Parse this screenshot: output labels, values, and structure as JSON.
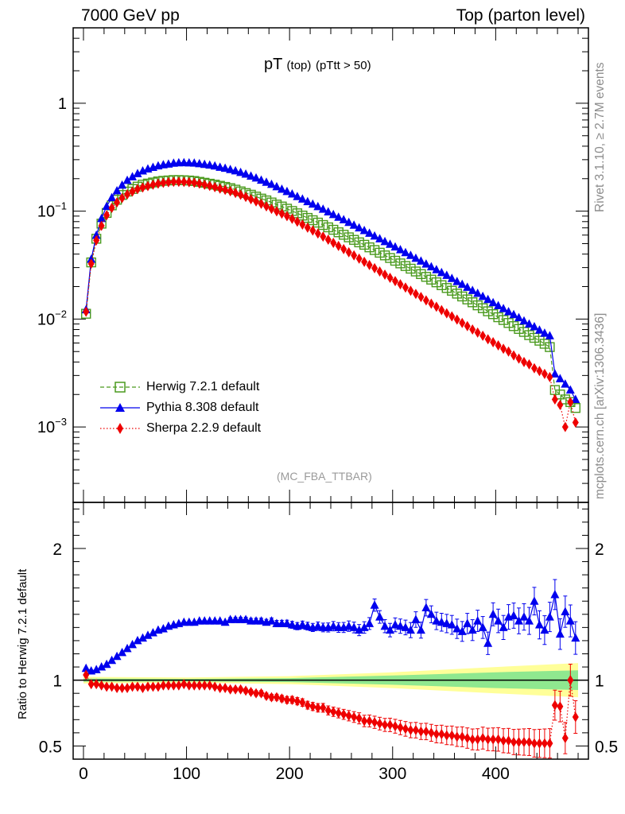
{
  "header": {
    "left": "7000 GeV pp",
    "right": "Top (parton level)"
  },
  "side_labels": {
    "rivet": "Rivet 3.1.10, ≥ 2.7M events",
    "mcplots": "mcplots.cern.ch [arXiv:1306.3436]"
  },
  "colors": {
    "herwig": "#4a9a1e",
    "pythia": "#0000ee",
    "sherpa": "#ee0000",
    "band_yellow": "#ffff99",
    "band_green": "#8fe88f"
  },
  "chart_data": [
    {
      "type": "line",
      "title_main": "pT",
      "title_sub1": "(top)",
      "title_sub2": "(pTtt > 50)",
      "annotation": "(MC_FBA_TTBAR)",
      "yscale": "log",
      "ylim": [
        0.0002,
        5
      ],
      "xlim": [
        -10,
        490
      ],
      "y_ticks": [
        {
          "value": 1,
          "label": "1"
        },
        {
          "value": 0.1,
          "label": "10",
          "exp": "−1"
        },
        {
          "value": 0.01,
          "label": "10",
          "exp": "−2"
        },
        {
          "value": 0.001,
          "label": "10",
          "exp": "−3"
        }
      ],
      "legend": [
        "Herwig 7.2.1 default",
        "Pythia 8.308 default",
        "Sherpa 2.2.9 default"
      ],
      "x": [
        2.5,
        7.5,
        12.5,
        17.5,
        22.5,
        27.5,
        32.5,
        37.5,
        42.5,
        47.5,
        52.5,
        57.5,
        62.5,
        67.5,
        72.5,
        77.5,
        82.5,
        87.5,
        92.5,
        97.5,
        102.5,
        107.5,
        112.5,
        117.5,
        122.5,
        127.5,
        132.5,
        137.5,
        142.5,
        147.5,
        152.5,
        157.5,
        162.5,
        167.5,
        172.5,
        177.5,
        182.5,
        187.5,
        192.5,
        197.5,
        202.5,
        207.5,
        212.5,
        217.5,
        222.5,
        227.5,
        232.5,
        237.5,
        242.5,
        247.5,
        252.5,
        257.5,
        262.5,
        267.5,
        272.5,
        277.5,
        282.5,
        287.5,
        292.5,
        297.5,
        302.5,
        307.5,
        312.5,
        317.5,
        322.5,
        327.5,
        332.5,
        337.5,
        342.5,
        347.5,
        352.5,
        357.5,
        362.5,
        367.5,
        372.5,
        377.5,
        382.5,
        387.5,
        392.5,
        397.5,
        402.5,
        407.5,
        412.5,
        417.5,
        422.5,
        427.5,
        432.5,
        437.5,
        442.5,
        447.5,
        452.5,
        457.5,
        462.5,
        467.5,
        472.5,
        477.5
      ],
      "series": [
        {
          "name": "Herwig 7.2.1 default",
          "values": [
            0.0112,
            0.0335,
            0.0555,
            0.0766,
            0.0963,
            0.1131,
            0.1276,
            0.1412,
            0.1519,
            0.1606,
            0.1688,
            0.1761,
            0.1802,
            0.1844,
            0.1886,
            0.1909,
            0.1925,
            0.1941,
            0.1941,
            0.1933,
            0.1922,
            0.1903,
            0.1869,
            0.1833,
            0.1796,
            0.1761,
            0.1718,
            0.1678,
            0.1634,
            0.1582,
            0.1524,
            0.1471,
            0.142,
            0.1364,
            0.1307,
            0.1258,
            0.1203,
            0.1151,
            0.1104,
            0.1054,
            0.1003,
            0.0955,
            0.091,
            0.0866,
            0.0824,
            0.0783,
            0.0744,
            0.0708,
            0.0672,
            0.0637,
            0.0604,
            0.0572,
            0.0542,
            0.0514,
            0.0488,
            0.0462,
            0.0436,
            0.0412,
            0.0389,
            0.0368,
            0.0347,
            0.0328,
            0.031,
            0.0293,
            0.0276,
            0.0261,
            0.0246,
            0.0232,
            0.0219,
            0.0206,
            0.0194,
            0.0183,
            0.0172,
            0.0162,
            0.0152,
            0.0143,
            0.0134,
            0.0126,
            0.0118,
            0.0111,
            0.0104,
            0.0098,
            0.0092,
            0.0086,
            0.0081,
            0.0076,
            0.0071,
            0.0067,
            0.0063,
            0.0059,
            0.0055,
            0.0022,
            0.002,
            0.0018,
            0.0017,
            0.0015
          ]
        },
        {
          "name": "Pythia 8.308 default",
          "values": [
            0.0122,
            0.0358,
            0.0598,
            0.0855,
            0.1107,
            0.1334,
            0.1544,
            0.1744,
            0.1929,
            0.2081,
            0.2228,
            0.2359,
            0.2464,
            0.2549,
            0.2631,
            0.2691,
            0.2734,
            0.2784,
            0.2808,
            0.2814,
            0.2805,
            0.2788,
            0.2754,
            0.2717,
            0.2677,
            0.2622,
            0.2555,
            0.2497,
            0.2432,
            0.2363,
            0.2284,
            0.2206,
            0.2115,
            0.2029,
            0.1939,
            0.1855,
            0.1771,
            0.1684,
            0.1598,
            0.1521,
            0.1443,
            0.1365,
            0.1294,
            0.1225,
            0.1162,
            0.1103,
            0.1043,
            0.0986,
            0.0931,
            0.0879,
            0.0833,
            0.0787,
            0.0742,
            0.07,
            0.0662,
            0.0625,
            0.0588,
            0.0555,
            0.0523,
            0.0494,
            0.0466,
            0.0439,
            0.0413,
            0.0389,
            0.0366,
            0.0345,
            0.0324,
            0.0305,
            0.0287,
            0.027,
            0.0254,
            0.0238,
            0.0223,
            0.021,
            0.0197,
            0.0184,
            0.0173,
            0.0162,
            0.0152,
            0.0142,
            0.0133,
            0.0125,
            0.0117,
            0.011,
            0.0103,
            0.0096,
            0.009,
            0.0085,
            0.0079,
            0.0074,
            0.007,
            0.0031,
            0.0028,
            0.0025,
            0.0022,
            0.0018
          ]
        },
        {
          "name": "Sherpa 2.2.9 default",
          "values": [
            0.0117,
            0.0326,
            0.0536,
            0.0732,
            0.0917,
            0.1072,
            0.1204,
            0.1323,
            0.1432,
            0.1519,
            0.1601,
            0.1658,
            0.1708,
            0.1757,
            0.1798,
            0.1829,
            0.1853,
            0.1868,
            0.1868,
            0.1866,
            0.1854,
            0.1834,
            0.1799,
            0.1759,
            0.1715,
            0.1668,
            0.1619,
            0.1573,
            0.1527,
            0.1474,
            0.1418,
            0.1354,
            0.1291,
            0.1232,
            0.1171,
            0.1108,
            0.1049,
            0.0996,
            0.0948,
            0.0899,
            0.0849,
            0.0799,
            0.0751,
            0.0704,
            0.0661,
            0.062,
            0.0581,
            0.0544,
            0.0509,
            0.0476,
            0.0445,
            0.0416,
            0.0389,
            0.0363,
            0.0339,
            0.0317,
            0.0296,
            0.0276,
            0.0258,
            0.0241,
            0.0225,
            0.021,
            0.0196,
            0.0183,
            0.0171,
            0.016,
            0.0149,
            0.0139,
            0.013,
            0.0121,
            0.0113,
            0.0106,
            0.0099,
            0.0092,
            0.0086,
            0.008,
            0.0075,
            0.007,
            0.0065,
            0.0061,
            0.0057,
            0.0053,
            0.005,
            0.0046,
            0.0043,
            0.004,
            0.0038,
            0.0035,
            0.0033,
            0.0031,
            0.0029,
            0.0018,
            0.0016,
            0.001,
            0.0017,
            0.0011
          ]
        }
      ]
    },
    {
      "type": "line",
      "ylabel": "Ratio to Herwig 7.2.1 default",
      "ylim": [
        0.4,
        2.35
      ],
      "xlim": [
        -10,
        490
      ],
      "y_ticks": [
        {
          "value": 0.5,
          "label": "0.5"
        },
        {
          "value": 1,
          "label": "1"
        },
        {
          "value": 2,
          "label": "2"
        }
      ],
      "x_ticks": [
        {
          "value": 0,
          "label": "0"
        },
        {
          "value": 100,
          "label": "100"
        },
        {
          "value": 200,
          "label": "200"
        },
        {
          "value": 300,
          "label": "300"
        },
        {
          "value": 400,
          "label": "400"
        }
      ],
      "x": [
        2.5,
        7.5,
        12.5,
        17.5,
        22.5,
        27.5,
        32.5,
        37.5,
        42.5,
        47.5,
        52.5,
        57.5,
        62.5,
        67.5,
        72.5,
        77.5,
        82.5,
        87.5,
        92.5,
        97.5,
        102.5,
        107.5,
        112.5,
        117.5,
        122.5,
        127.5,
        132.5,
        137.5,
        142.5,
        147.5,
        152.5,
        157.5,
        162.5,
        167.5,
        172.5,
        177.5,
        182.5,
        187.5,
        192.5,
        197.5,
        202.5,
        207.5,
        212.5,
        217.5,
        222.5,
        227.5,
        232.5,
        237.5,
        242.5,
        247.5,
        252.5,
        257.5,
        262.5,
        267.5,
        272.5,
        277.5,
        282.5,
        287.5,
        292.5,
        297.5,
        302.5,
        307.5,
        312.5,
        317.5,
        322.5,
        327.5,
        332.5,
        337.5,
        342.5,
        347.5,
        352.5,
        357.5,
        362.5,
        367.5,
        372.5,
        377.5,
        382.5,
        387.5,
        392.5,
        397.5,
        402.5,
        407.5,
        412.5,
        417.5,
        422.5,
        427.5,
        432.5,
        437.5,
        442.5,
        447.5,
        452.5,
        457.5,
        462.5,
        467.5,
        472.5,
        477.5
      ],
      "reference_band": {
        "x": [
          0,
          100,
          200,
          300,
          400,
          480
        ],
        "yellow_half_width": [
          0.025,
          0.02,
          0.03,
          0.06,
          0.1,
          0.13
        ],
        "green_half_width": [
          0.012,
          0.01,
          0.015,
          0.035,
          0.06,
          0.075
        ]
      },
      "series": [
        {
          "name": "Pythia 8.308 default",
          "values": [
            1.09,
            1.07,
            1.08,
            1.1,
            1.12,
            1.15,
            1.18,
            1.21,
            1.24,
            1.27,
            1.3,
            1.32,
            1.34,
            1.36,
            1.38,
            1.39,
            1.41,
            1.42,
            1.43,
            1.44,
            1.44,
            1.44,
            1.45,
            1.45,
            1.45,
            1.45,
            1.45,
            1.44,
            1.46,
            1.46,
            1.46,
            1.46,
            1.45,
            1.45,
            1.45,
            1.44,
            1.45,
            1.43,
            1.43,
            1.43,
            1.42,
            1.41,
            1.42,
            1.41,
            1.4,
            1.41,
            1.4,
            1.4,
            1.41,
            1.4,
            1.4,
            1.41,
            1.4,
            1.38,
            1.4,
            1.43,
            1.57,
            1.48,
            1.41,
            1.38,
            1.42,
            1.41,
            1.4,
            1.38,
            1.46,
            1.38,
            1.55,
            1.5,
            1.45,
            1.44,
            1.43,
            1.42,
            1.39,
            1.37,
            1.43,
            1.38,
            1.45,
            1.4,
            1.28,
            1.5,
            1.45,
            1.4,
            1.48,
            1.49,
            1.45,
            1.48,
            1.45,
            1.6,
            1.42,
            1.38,
            1.48,
            1.65,
            1.35,
            1.52,
            1.45,
            1.32
          ]
        },
        {
          "name": "Sherpa 2.2.9 default",
          "values": [
            1.04,
            0.97,
            0.97,
            0.96,
            0.95,
            0.95,
            0.94,
            0.94,
            0.94,
            0.95,
            0.95,
            0.94,
            0.95,
            0.95,
            0.95,
            0.96,
            0.96,
            0.96,
            0.96,
            0.97,
            0.96,
            0.96,
            0.96,
            0.96,
            0.96,
            0.95,
            0.94,
            0.94,
            0.93,
            0.93,
            0.93,
            0.92,
            0.91,
            0.9,
            0.9,
            0.88,
            0.87,
            0.87,
            0.86,
            0.85,
            0.85,
            0.84,
            0.83,
            0.81,
            0.8,
            0.79,
            0.79,
            0.77,
            0.76,
            0.75,
            0.74,
            0.73,
            0.72,
            0.71,
            0.69,
            0.69,
            0.68,
            0.67,
            0.66,
            0.66,
            0.65,
            0.64,
            0.63,
            0.62,
            0.62,
            0.61,
            0.61,
            0.6,
            0.59,
            0.59,
            0.58,
            0.58,
            0.57,
            0.57,
            0.56,
            0.55,
            0.55,
            0.56,
            0.55,
            0.55,
            0.55,
            0.54,
            0.54,
            0.53,
            0.53,
            0.53,
            0.53,
            0.52,
            0.52,
            0.52,
            0.52,
            0.81,
            0.8,
            0.56,
            1.0,
            0.72
          ]
        }
      ]
    }
  ]
}
